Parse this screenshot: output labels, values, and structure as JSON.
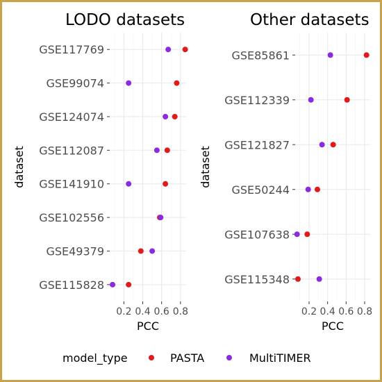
{
  "chart_data": [
    {
      "type": "scatter",
      "title": "LODO datasets",
      "xlabel": "PCC",
      "ylabel": "dataset",
      "xlim": [
        0.05,
        0.86
      ],
      "xticks": [
        0.2,
        0.4,
        0.6,
        0.8
      ],
      "xtick_labels": [
        "0.2",
        "0.4",
        "0.6",
        "0.8"
      ],
      "grid": true,
      "categories": [
        "GSE117769",
        "GSE99074",
        "GSE124074",
        "GSE112087",
        "GSE141910",
        "GSE102556",
        "GSE49379",
        "GSE115828"
      ],
      "series": [
        {
          "name": "PASTA",
          "color": "#e31a1c",
          "values": [
            0.85,
            0.76,
            0.74,
            0.66,
            0.64,
            0.58,
            0.38,
            0.25
          ]
        },
        {
          "name": "MultiTIMER",
          "color": "#8a2be2",
          "values": [
            0.67,
            0.25,
            0.64,
            0.55,
            0.25,
            0.59,
            0.5,
            0.08
          ]
        }
      ]
    },
    {
      "type": "scatter",
      "title": "Other datasets",
      "xlabel": "PCC",
      "ylabel": "dataset",
      "xlim": [
        0.05,
        0.86
      ],
      "xticks": [
        0.2,
        0.4,
        0.6,
        0.8
      ],
      "xtick_labels": [
        "0.2",
        "0.4",
        "0.6",
        "0.8"
      ],
      "grid": true,
      "categories": [
        "GSE85861",
        "GSE112339",
        "GSE121827",
        "GSE50244",
        "GSE107638",
        "GSE115348"
      ],
      "series": [
        {
          "name": "PASTA",
          "color": "#e31a1c",
          "values": [
            0.82,
            0.61,
            0.46,
            0.29,
            0.18,
            0.08
          ]
        },
        {
          "name": "MultiTIMER",
          "color": "#8a2be2",
          "values": [
            0.43,
            0.22,
            0.34,
            0.19,
            0.07,
            0.31
          ]
        }
      ]
    }
  ],
  "legend": {
    "title": "model_type",
    "position": "bottom",
    "items": [
      {
        "label": "PASTA",
        "color": "#e31a1c"
      },
      {
        "label": "MultiTIMER",
        "color": "#8a2be2"
      }
    ]
  },
  "colors": {
    "panel_background": "#ffffff",
    "grid": "#ebebeb",
    "frame_border": "#c9a24a"
  }
}
